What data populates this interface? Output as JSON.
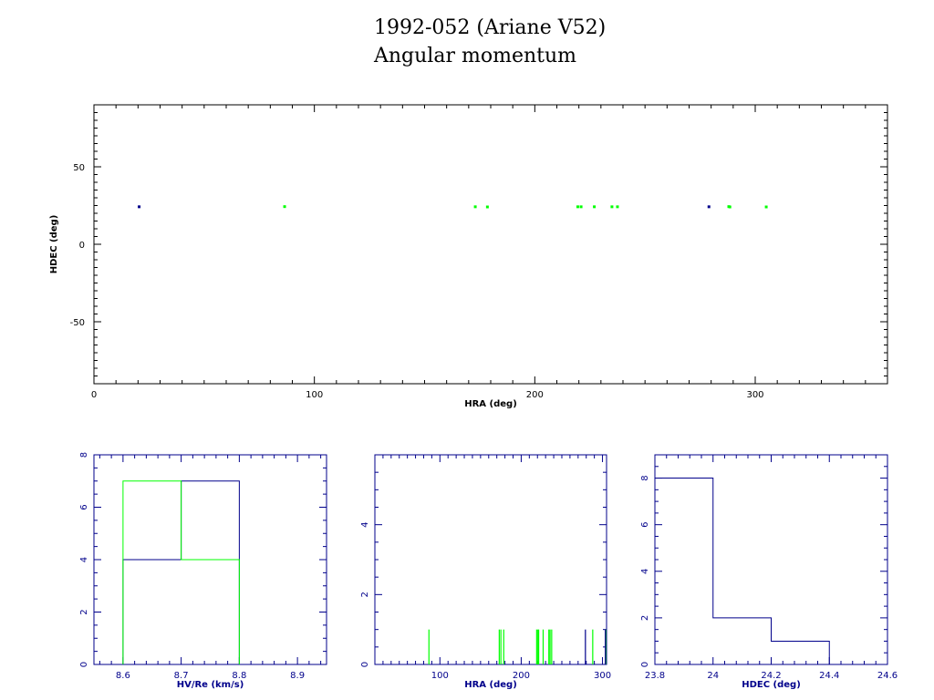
{
  "title": {
    "line1": "1992-052 (Ariane V52)",
    "line2": "Angular momentum"
  },
  "colors": {
    "axes_main": "#000000",
    "axes_hist": "#00008b",
    "series_blue": "#00008b",
    "series_green": "#00ff00"
  },
  "chart_data": [
    {
      "type": "scatter",
      "xlabel": "HRA (deg)",
      "ylabel": "HDEC (deg)",
      "xlim": [
        0,
        360
      ],
      "ylim": [
        -90,
        90
      ],
      "xticks": [
        0,
        100,
        200,
        300
      ],
      "yticks": [
        -50,
        0,
        50
      ],
      "series": [
        {
          "color": "series_blue",
          "points": [
            [
              20.5,
              24.2
            ],
            [
              279,
              24.2
            ]
          ]
        },
        {
          "color": "series_green",
          "points": [
            [
              86.5,
              24.3
            ],
            [
              173,
              24.2
            ],
            [
              178.5,
              24.1
            ],
            [
              219.5,
              24.2
            ],
            [
              221,
              24.2
            ],
            [
              227,
              24.2
            ],
            [
              235,
              24.2
            ],
            [
              237.5,
              24.2
            ],
            [
              288,
              24.3
            ],
            [
              288.5,
              24.1
            ],
            [
              305,
              24.1
            ]
          ]
        }
      ]
    },
    {
      "type": "histogram",
      "xlabel": "HV/Re (km/s)",
      "ylabel": "",
      "xlim": [
        8.55,
        8.95
      ],
      "ylim": [
        0,
        8
      ],
      "xticks": [
        8.6,
        8.7,
        8.8,
        8.9
      ],
      "yticks": [
        0,
        2,
        4,
        6,
        8
      ],
      "series": [
        {
          "color": "series_blue",
          "edges": [
            8.6,
            8.7,
            8.8
          ],
          "counts": [
            4,
            7
          ]
        },
        {
          "color": "series_green",
          "edges": [
            8.6,
            8.7,
            8.8
          ],
          "counts": [
            7,
            4
          ]
        }
      ]
    },
    {
      "type": "histogram",
      "xlabel": "HRA (deg)",
      "ylabel": "",
      "xlim": [
        20,
        305
      ],
      "ylim": [
        0,
        6
      ],
      "xticks": [
        100,
        200,
        300
      ],
      "yticks": [
        0,
        2,
        4
      ],
      "series": [
        {
          "color": "series_green",
          "spikes": [
            86.5,
            173,
            175,
            178.5,
            219,
            220.5,
            221.5,
            227,
            234,
            235.5,
            237.5,
            288,
            304
          ]
        },
        {
          "color": "series_blue",
          "spikes": [
            279,
            303.5
          ]
        }
      ]
    },
    {
      "type": "histogram",
      "xlabel": "HDEC (deg)",
      "ylabel": "",
      "xlim": [
        23.8,
        24.6
      ],
      "ylim": [
        0,
        9
      ],
      "xticks": [
        23.8,
        24,
        24.2,
        24.4,
        24.6
      ],
      "yticks": [
        0,
        2,
        4,
        6,
        8
      ],
      "series": [
        {
          "color": "series_blue",
          "edges": [
            23.8,
            24.0,
            24.2,
            24.4
          ],
          "counts": [
            8,
            2,
            1
          ]
        }
      ]
    }
  ]
}
